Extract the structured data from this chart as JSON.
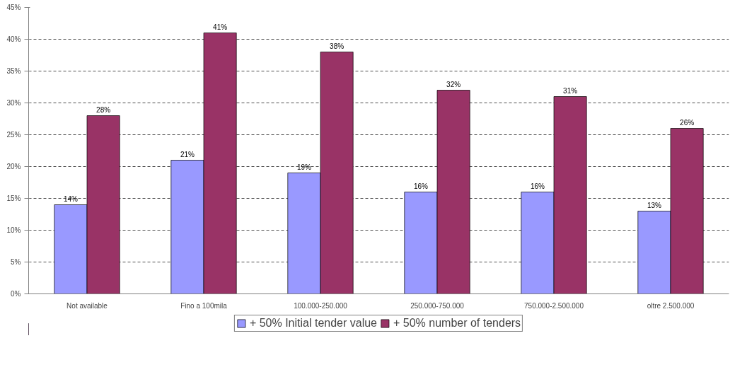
{
  "chart_data": {
    "type": "bar",
    "categories": [
      "Not available",
      "Fino a 100mila",
      "100.000-250.000",
      "250.000-750.000",
      "750.000-2.500.000",
      "oltre 2.500.000"
    ],
    "series": [
      {
        "name": "+ 50% Initial tender value",
        "color": "#9999ff",
        "values": [
          14,
          21,
          19,
          16,
          16,
          13
        ],
        "value_labels": [
          "14%",
          "21%",
          "19%",
          "16%",
          "16%",
          "13%"
        ]
      },
      {
        "name": "+ 50% number of tenders",
        "color": "#993366",
        "values": [
          28,
          41,
          38,
          32,
          31,
          26
        ],
        "value_labels": [
          "28%",
          "41%",
          "38%",
          "32%",
          "31%",
          "26%"
        ]
      }
    ],
    "ylim": [
      0,
      45
    ],
    "yticks": [
      {
        "value": 0,
        "label": "0%"
      },
      {
        "value": 5,
        "label": "5%"
      },
      {
        "value": 10,
        "label": "10%"
      },
      {
        "value": 15,
        "label": "15%"
      },
      {
        "value": 20,
        "label": "20%"
      },
      {
        "value": 25,
        "label": "25%"
      },
      {
        "value": 30,
        "label": "30%"
      },
      {
        "value": 35,
        "label": "35%"
      },
      {
        "value": 40,
        "label": "40%"
      },
      {
        "value": 45,
        "label": "45%"
      }
    ],
    "grid": "y",
    "legend": "bottom"
  }
}
